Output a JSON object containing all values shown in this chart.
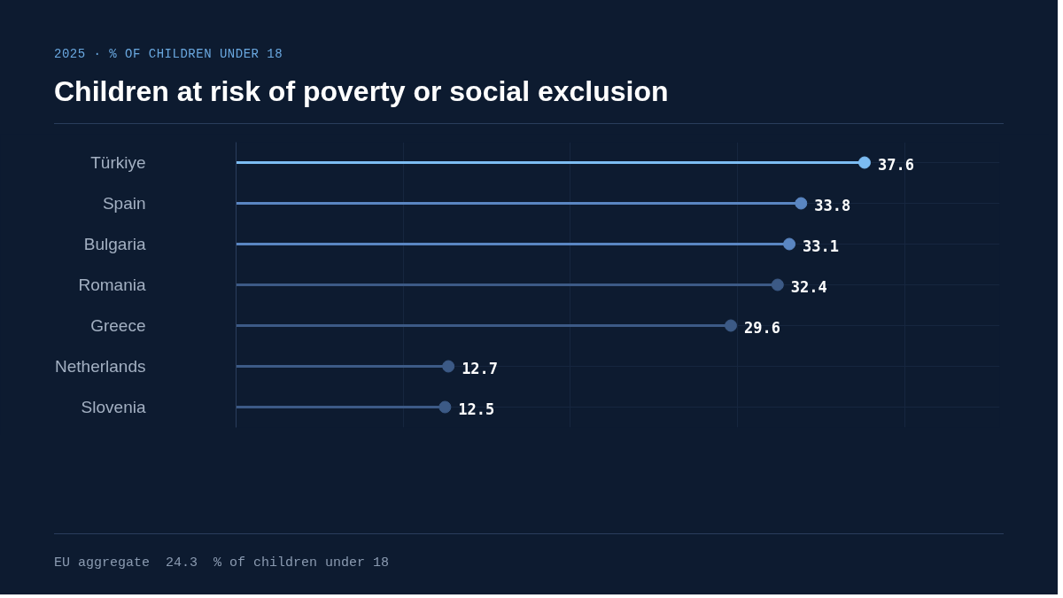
{
  "chart_data": {
    "type": "lollipop",
    "orientation": "horizontal",
    "title": "Children at risk of poverty or social exclusion",
    "subtitle": "2025  ·  % OF CHILDREN UNDER 18",
    "categories": [
      "Türkiye",
      "Spain",
      "Bulgaria",
      "Romania",
      "Greece",
      "Netherlands",
      "Slovenia"
    ],
    "values": [
      37.6,
      33.8,
      33.1,
      32.4,
      29.6,
      12.7,
      12.5
    ],
    "colors": [
      "#7cbcf2",
      "#5a86c2",
      "#5a86c2",
      "#3c5a86",
      "#3c5a86",
      "#3c5a86",
      "#3c5a86"
    ],
    "data_labels": true,
    "grid": true,
    "annotations": [
      "EU aggregate  24.3  % of children under 18"
    ]
  }
}
